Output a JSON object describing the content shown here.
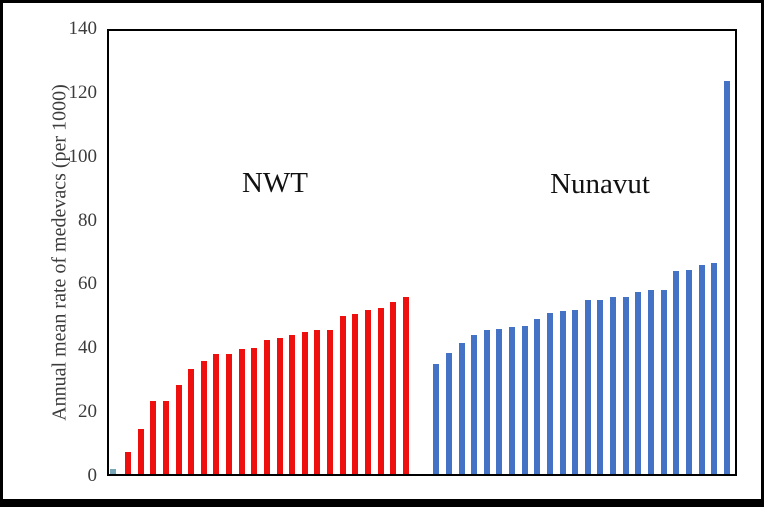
{
  "chart_data": {
    "type": "bar",
    "title": "",
    "xlabel": "",
    "ylabel": "Annual mean rate of medevacs (per 1000)",
    "ylim": [
      0,
      140
    ],
    "yticks": [
      0,
      20,
      40,
      60,
      80,
      100,
      120,
      140
    ],
    "grid": false,
    "legend": "none",
    "annotations": [
      {
        "text": "NWT",
        "group": "left"
      },
      {
        "text": "Nunavut",
        "group": "right"
      }
    ],
    "series": [
      {
        "name": "first-bar",
        "color": "#7aa7b8",
        "values": [
          1.5
        ]
      },
      {
        "name": "NWT",
        "color": "#ee0f0f",
        "values": [
          7,
          14,
          23,
          23,
          28,
          33,
          35.5,
          37.5,
          37.5,
          39,
          39.5,
          42,
          42.5,
          43.5,
          44.5,
          45,
          45,
          49.5,
          50,
          51.5,
          52,
          54,
          55.5
        ]
      },
      {
        "name": "Nunavut",
        "color": "#4472c4",
        "values": [
          34.5,
          38,
          41,
          43.5,
          45,
          45.5,
          46,
          46.5,
          48.5,
          50.5,
          51,
          51.5,
          54.5,
          54.5,
          55.5,
          55.5,
          57,
          57.5,
          57.5,
          63.5,
          64,
          65.5,
          66,
          123
        ]
      }
    ]
  },
  "labels": {
    "nwt": "NWT",
    "nunavut": "Nunavut"
  },
  "colors": {
    "nwt_bar": "#ee0f0f",
    "nunavut_bar": "#4472c4",
    "first_bar": "#7aa7b8",
    "axis": "#000000",
    "tick_text": "#3c3c3c"
  }
}
